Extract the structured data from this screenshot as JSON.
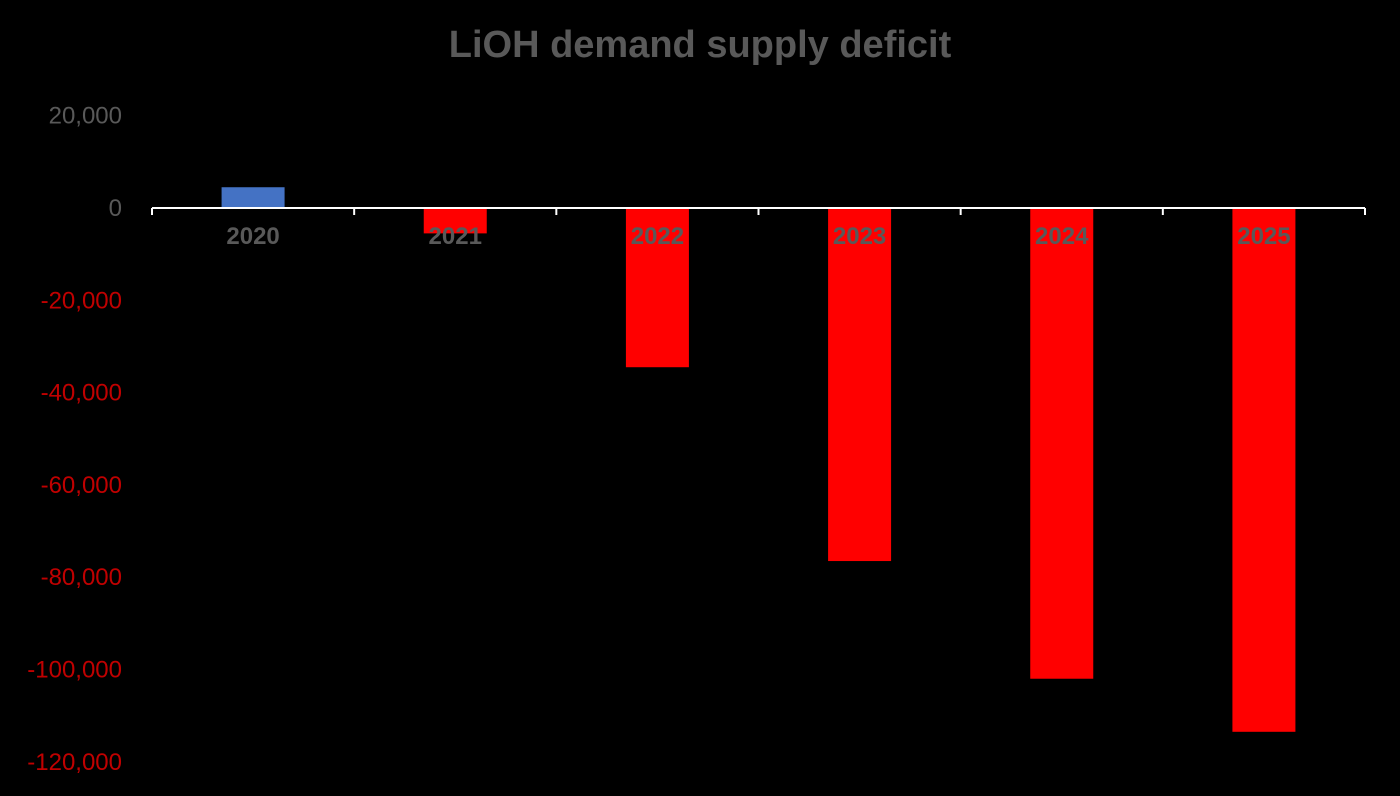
{
  "chart_data": {
    "type": "bar",
    "title": "LiOH demand supply deficit",
    "xlabel": "",
    "ylabel": "",
    "categories": [
      "2020",
      "2021",
      "2022",
      "2023",
      "2024",
      "2025"
    ],
    "values": [
      4500,
      -5500,
      -34500,
      -76500,
      -102000,
      -113500
    ],
    "ylim": [
      -120000,
      20000
    ],
    "yticks": [
      20000,
      0,
      -20000,
      -40000,
      -60000,
      -80000,
      -100000,
      -120000
    ],
    "ytick_labels": [
      "20,000",
      "0",
      "-20,000",
      "-40,000",
      "-60,000",
      "-80,000",
      "-100,000",
      "-120,000"
    ],
    "grid": false,
    "legend": "none",
    "colors": {
      "positive_bar": "#4472C4",
      "negative_bar": "#FF0000",
      "axis_line": "#FFFFFF",
      "text_gray": "#595959",
      "negative_tick": "#C00000",
      "background": "#000000"
    }
  }
}
